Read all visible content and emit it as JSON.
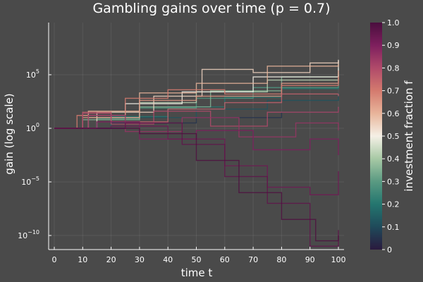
{
  "chart_data": {
    "type": "line",
    "title": "Gambling gains over time (p = 0.7)",
    "xlabel": "time t",
    "ylabel": "gain (log scale)",
    "y_scale": "log10",
    "xlim": [
      0,
      100
    ],
    "ylim_log10": [
      -12,
      6.5
    ],
    "grid": true,
    "legend": "none",
    "x_ticks": [
      0,
      10,
      20,
      30,
      40,
      50,
      60,
      70,
      80,
      90,
      100
    ],
    "y_ticks": [
      {
        "base": "10",
        "exp": "5",
        "log10": 5
      },
      {
        "base": "10",
        "exp": "0",
        "log10": 0
      },
      {
        "base": "10",
        "exp": "−5",
        "log10": -5
      },
      {
        "base": "10",
        "exp": "−10",
        "log10": -10
      }
    ],
    "step": "post",
    "colorbar": {
      "label": "investment fraction f",
      "range": [
        0,
        1
      ],
      "ticks": [
        "0",
        "0.1",
        "0.2",
        "0.3",
        "0.4",
        "0.5",
        "0.6",
        "0.7",
        "0.8",
        "0.9",
        "1.0"
      ],
      "colormap": [
        "#2a1a3e",
        "#1f4a5a",
        "#24766f",
        "#5a9a82",
        "#a7c9a5",
        "#f5f0e6",
        "#e8b49a",
        "#d47a6e",
        "#b04a6a",
        "#7e1f5e",
        "#4a0e3d"
      ]
    },
    "series_description_note": "",
    "series": [
      {
        "f": 0.05,
        "points": [
          [
            0,
            0
          ],
          [
            20,
            0.5
          ],
          [
            50,
            1.0
          ],
          [
            80,
            1.5
          ],
          [
            100,
            1.9
          ]
        ]
      },
      {
        "f": 0.12,
        "points": [
          [
            0,
            0
          ],
          [
            25,
            1.0
          ],
          [
            50,
            1.8
          ],
          [
            75,
            2.6
          ],
          [
            100,
            3.3
          ]
        ]
      },
      {
        "f": 0.2,
        "points": [
          [
            0,
            0
          ],
          [
            20,
            1.1
          ],
          [
            40,
            2.0
          ],
          [
            60,
            2.9
          ],
          [
            80,
            3.7
          ],
          [
            100,
            4.4
          ]
        ]
      },
      {
        "f": 0.28,
        "points": [
          [
            0,
            0
          ],
          [
            15,
            0.9
          ],
          [
            30,
            1.9
          ],
          [
            50,
            2.8
          ],
          [
            70,
            3.8
          ],
          [
            100,
            5.2
          ]
        ]
      },
      {
        "f": 0.35,
        "points": [
          [
            0,
            0
          ],
          [
            10,
            0.8
          ],
          [
            30,
            2.0
          ],
          [
            55,
            3.5
          ],
          [
            80,
            4.8
          ],
          [
            100,
            5.6
          ]
        ]
      },
      {
        "f": 0.42,
        "points": [
          [
            0,
            0
          ],
          [
            12,
            1.0
          ],
          [
            30,
            2.4
          ],
          [
            50,
            3.4
          ],
          [
            75,
            4.5
          ],
          [
            100,
            5.0
          ]
        ]
      },
      {
        "f": 0.5,
        "points": [
          [
            0,
            0
          ],
          [
            10,
            1.2
          ],
          [
            25,
            2.3
          ],
          [
            45,
            3.4
          ],
          [
            70,
            4.8
          ],
          [
            100,
            6.4
          ]
        ]
      },
      {
        "f": 0.55,
        "points": [
          [
            0,
            0
          ],
          [
            15,
            1.5
          ],
          [
            35,
            3.0
          ],
          [
            52,
            5.5
          ],
          [
            70,
            5.2
          ],
          [
            90,
            6.1
          ],
          [
            100,
            6.3
          ]
        ]
      },
      {
        "f": 0.6,
        "points": [
          [
            0,
            0
          ],
          [
            12,
            1.6
          ],
          [
            30,
            3.3
          ],
          [
            50,
            4.2
          ],
          [
            75,
            5.8
          ],
          [
            100,
            6.0
          ]
        ]
      },
      {
        "f": 0.65,
        "points": [
          [
            0,
            0
          ],
          [
            10,
            1.0
          ],
          [
            30,
            2.6
          ],
          [
            50,
            3.0
          ],
          [
            80,
            4.2
          ],
          [
            100,
            5.4
          ]
        ]
      },
      {
        "f": 0.7,
        "points": [
          [
            0,
            0
          ],
          [
            8,
            1.2
          ],
          [
            25,
            2.8
          ],
          [
            40,
            3.6
          ],
          [
            60,
            3.2
          ],
          [
            80,
            4.0
          ],
          [
            100,
            4.8
          ]
        ]
      },
      {
        "f": 0.75,
        "points": [
          [
            0,
            0
          ],
          [
            10,
            1.5
          ],
          [
            20,
            0.6
          ],
          [
            40,
            1.8
          ],
          [
            60,
            2.4
          ],
          [
            80,
            3.2
          ],
          [
            100,
            3.0
          ]
        ]
      },
      {
        "f": 0.8,
        "points": [
          [
            0,
            0
          ],
          [
            10,
            1.4
          ],
          [
            20,
            0.4
          ],
          [
            35,
            1.6
          ],
          [
            55,
            0.2
          ],
          [
            75,
            1.5
          ],
          [
            100,
            2.0
          ]
        ]
      },
      {
        "f": 0.85,
        "points": [
          [
            0,
            0
          ],
          [
            12,
            1.2
          ],
          [
            25,
            -0.3
          ],
          [
            45,
            1.0
          ],
          [
            65,
            -0.8
          ],
          [
            85,
            0.5
          ],
          [
            100,
            -0.2
          ]
        ]
      },
      {
        "f": 0.9,
        "points": [
          [
            0,
            0
          ],
          [
            15,
            0.6
          ],
          [
            30,
            -1.0
          ],
          [
            50,
            -0.2
          ],
          [
            70,
            -2.0
          ],
          [
            90,
            -1.0
          ],
          [
            100,
            -2.5
          ]
        ]
      },
      {
        "f": 0.93,
        "points": [
          [
            0,
            0
          ],
          [
            20,
            0.2
          ],
          [
            40,
            -1.0
          ],
          [
            60,
            -3.5
          ],
          [
            75,
            -5.5
          ],
          [
            90,
            -6.2
          ],
          [
            100,
            -4.0
          ]
        ]
      },
      {
        "f": 0.96,
        "points": [
          [
            0,
            0
          ],
          [
            25,
            0.5
          ],
          [
            45,
            -1.5
          ],
          [
            60,
            -4.5
          ],
          [
            75,
            -7.0
          ],
          [
            90,
            -11.0
          ],
          [
            100,
            -9.5
          ]
        ]
      },
      {
        "f": 0.99,
        "points": [
          [
            0,
            0
          ],
          [
            30,
            -0.5
          ],
          [
            50,
            -3.0
          ],
          [
            65,
            -6.0
          ],
          [
            80,
            -8.5
          ],
          [
            92,
            -10.5
          ],
          [
            100,
            -10.0
          ]
        ]
      }
    ]
  }
}
